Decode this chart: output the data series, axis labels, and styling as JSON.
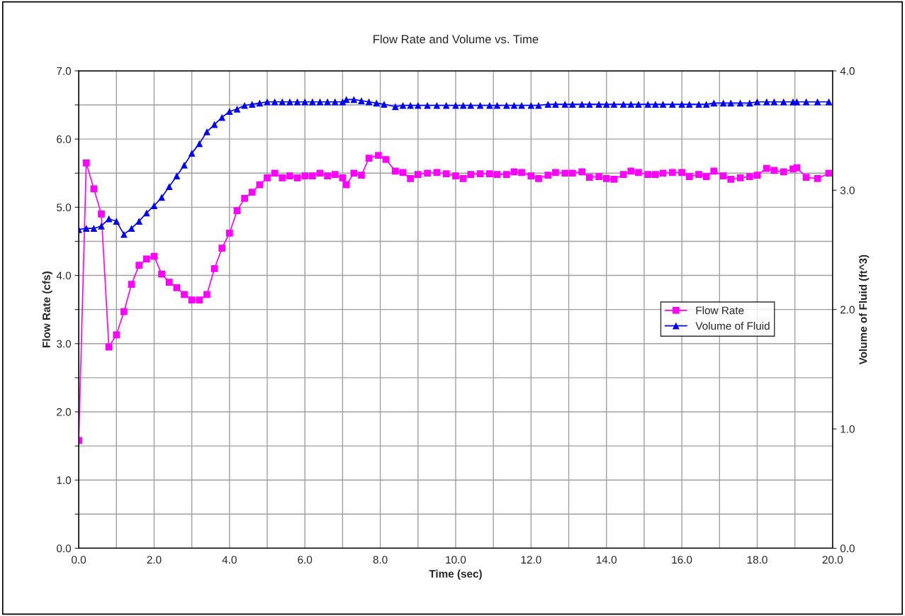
{
  "chart_data": {
    "type": "line",
    "title": "Flow Rate and Volume vs. Time",
    "xlabel": "Time (sec)",
    "ylabel": "Flow Rate (cfs)",
    "y2label": "Volume of Fluid (ft^3)",
    "xlim": [
      0,
      20
    ],
    "xticks": [
      {
        "value": 0,
        "label": "0.0"
      },
      {
        "value": 1,
        "label": null
      },
      {
        "value": 2,
        "label": "2.0"
      },
      {
        "value": 3,
        "label": null
      },
      {
        "value": 4,
        "label": "4.0"
      },
      {
        "value": 5,
        "label": null
      },
      {
        "value": 6,
        "label": "6.0"
      },
      {
        "value": 7,
        "label": null
      },
      {
        "value": 8,
        "label": "8.0"
      },
      {
        "value": 9,
        "label": null
      },
      {
        "value": 10,
        "label": "10.0"
      },
      {
        "value": 11,
        "label": null
      },
      {
        "value": 12,
        "label": "12.0"
      },
      {
        "value": 13,
        "label": null
      },
      {
        "value": 14,
        "label": "14.0"
      },
      {
        "value": 15,
        "label": null
      },
      {
        "value": 16,
        "label": "16.0"
      },
      {
        "value": 17,
        "label": null
      },
      {
        "value": 18,
        "label": "18.0"
      },
      {
        "value": 19,
        "label": null
      },
      {
        "value": 20,
        "label": "20.0"
      }
    ],
    "ylim": [
      0,
      7
    ],
    "yticks": [
      {
        "value": 0,
        "label": "0.0"
      },
      {
        "value": 0.5,
        "label": null
      },
      {
        "value": 1,
        "label": "1.0"
      },
      {
        "value": 1.5,
        "label": null
      },
      {
        "value": 2,
        "label": "2.0"
      },
      {
        "value": 2.5,
        "label": null
      },
      {
        "value": 3,
        "label": "3.0"
      },
      {
        "value": 3.5,
        "label": null
      },
      {
        "value": 4,
        "label": "4.0"
      },
      {
        "value": 4.5,
        "label": null
      },
      {
        "value": 5,
        "label": "5.0"
      },
      {
        "value": 5.5,
        "label": null
      },
      {
        "value": 6,
        "label": "6.0"
      },
      {
        "value": 6.5,
        "label": null
      },
      {
        "value": 7,
        "label": "7.0"
      }
    ],
    "y2lim": [
      0,
      4
    ],
    "y2ticks": [
      {
        "value": 0,
        "label": "0.0"
      },
      {
        "value": 1,
        "label": "1.0"
      },
      {
        "value": 2,
        "label": "2.0"
      },
      {
        "value": 3,
        "label": "3.0"
      },
      {
        "value": 4,
        "label": "4.0"
      }
    ],
    "grid": true,
    "legend": "right",
    "line_style": "solid",
    "series": [
      {
        "name": "Flow Rate",
        "color": "#ff00ff",
        "marker": "square",
        "x": [
          0,
          0.2,
          0.4,
          0.6,
          0.8,
          1.0,
          1.2,
          1.4,
          1.6,
          1.8,
          2.0,
          2.2,
          2.4,
          2.6,
          2.8,
          3.0,
          3.2,
          3.4,
          3.6,
          3.8,
          4.0,
          4.2,
          4.4,
          4.6,
          4.8,
          5.0,
          5.2,
          5.4,
          5.6,
          5.8,
          6.0,
          6.2,
          6.4,
          6.6,
          6.8,
          7.0,
          7.1,
          7.3,
          7.5,
          7.7,
          7.95,
          8.15,
          8.4,
          8.6,
          8.8,
          9.0,
          9.25,
          9.5,
          9.75,
          10.0,
          10.2,
          10.4,
          10.65,
          10.9,
          11.1,
          11.35,
          11.55,
          11.75,
          12.0,
          12.2,
          12.45,
          12.65,
          12.9,
          13.1,
          13.35,
          13.55,
          13.8,
          14.0,
          14.2,
          14.45,
          14.65,
          14.85,
          15.1,
          15.3,
          15.5,
          15.75,
          16.0,
          16.2,
          16.45,
          16.65,
          16.85,
          17.1,
          17.3,
          17.55,
          17.8,
          18.0,
          18.25,
          18.45,
          18.7,
          18.95,
          19.05,
          19.3,
          19.6,
          19.9
        ],
        "values": [
          1.58,
          5.65,
          5.27,
          4.9,
          2.95,
          3.13,
          3.47,
          3.87,
          4.15,
          4.24,
          4.28,
          4.02,
          3.9,
          3.82,
          3.72,
          3.64,
          3.64,
          3.72,
          4.1,
          4.4,
          4.62,
          4.95,
          5.13,
          5.22,
          5.33,
          5.43,
          5.5,
          5.43,
          5.46,
          5.43,
          5.46,
          5.46,
          5.5,
          5.46,
          5.48,
          5.43,
          5.33,
          5.5,
          5.47,
          5.72,
          5.76,
          5.7,
          5.53,
          5.51,
          5.42,
          5.48,
          5.5,
          5.51,
          5.49,
          5.46,
          5.42,
          5.48,
          5.49,
          5.49,
          5.48,
          5.48,
          5.52,
          5.51,
          5.46,
          5.42,
          5.47,
          5.51,
          5.5,
          5.5,
          5.52,
          5.44,
          5.45,
          5.42,
          5.41,
          5.48,
          5.53,
          5.51,
          5.48,
          5.48,
          5.5,
          5.51,
          5.51,
          5.45,
          5.48,
          5.45,
          5.53,
          5.46,
          5.41,
          5.43,
          5.45,
          5.47,
          5.57,
          5.54,
          5.52,
          5.56,
          5.58,
          5.44,
          5.42,
          5.5
        ]
      },
      {
        "name": "Volume of Fluid",
        "color": "#0000ff",
        "marker": "triangle",
        "axis": "y2",
        "x": [
          0,
          0.2,
          0.4,
          0.6,
          0.8,
          1.0,
          1.2,
          1.4,
          1.6,
          1.8,
          2.0,
          2.2,
          2.4,
          2.6,
          2.8,
          3.0,
          3.2,
          3.4,
          3.6,
          3.8,
          4.0,
          4.2,
          4.4,
          4.6,
          4.8,
          5.0,
          5.2,
          5.4,
          5.6,
          5.8,
          6.0,
          6.2,
          6.4,
          6.6,
          6.8,
          7.0,
          7.1,
          7.3,
          7.5,
          7.7,
          7.9,
          8.1,
          8.4,
          8.6,
          8.8,
          9.0,
          9.25,
          9.5,
          9.75,
          10.0,
          10.2,
          10.4,
          10.65,
          10.9,
          11.1,
          11.35,
          11.55,
          11.75,
          12.0,
          12.2,
          12.45,
          12.65,
          12.9,
          13.1,
          13.35,
          13.55,
          13.8,
          14.0,
          14.2,
          14.45,
          14.65,
          14.85,
          15.1,
          15.3,
          15.5,
          15.75,
          16.0,
          16.2,
          16.45,
          16.65,
          16.85,
          17.1,
          17.3,
          17.55,
          17.8,
          18.0,
          18.25,
          18.45,
          18.7,
          18.95,
          19.05,
          19.3,
          19.6,
          19.9
        ],
        "values": [
          2.67,
          2.68,
          2.68,
          2.7,
          2.76,
          2.74,
          2.63,
          2.68,
          2.74,
          2.81,
          2.87,
          2.94,
          3.03,
          3.12,
          3.21,
          3.31,
          3.39,
          3.49,
          3.55,
          3.61,
          3.66,
          3.68,
          3.71,
          3.72,
          3.73,
          3.74,
          3.74,
          3.74,
          3.74,
          3.74,
          3.74,
          3.74,
          3.74,
          3.74,
          3.74,
          3.74,
          3.76,
          3.76,
          3.75,
          3.74,
          3.73,
          3.72,
          3.7,
          3.71,
          3.71,
          3.71,
          3.71,
          3.71,
          3.71,
          3.71,
          3.71,
          3.71,
          3.71,
          3.71,
          3.71,
          3.71,
          3.71,
          3.71,
          3.71,
          3.71,
          3.72,
          3.72,
          3.72,
          3.72,
          3.72,
          3.72,
          3.72,
          3.72,
          3.72,
          3.72,
          3.72,
          3.72,
          3.72,
          3.72,
          3.72,
          3.72,
          3.72,
          3.72,
          3.72,
          3.72,
          3.73,
          3.73,
          3.73,
          3.73,
          3.73,
          3.74,
          3.74,
          3.74,
          3.74,
          3.74,
          3.74,
          3.74,
          3.74,
          3.74
        ]
      }
    ]
  }
}
